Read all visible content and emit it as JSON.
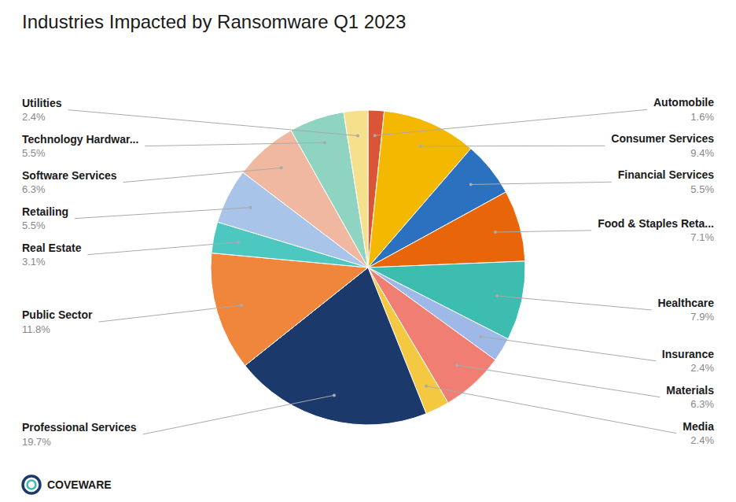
{
  "chart_data": {
    "type": "pie",
    "title": "Industries Impacted by Ransomware Q1 2023",
    "categories": [
      "Automobile",
      "Consumer Services",
      "Financial Services",
      "Food & Staples Reta...",
      "Healthcare",
      "Insurance",
      "Materials",
      "Media",
      "Professional Services",
      "Public Sector",
      "Real Estate",
      "Retailing",
      "Software Services",
      "Technology Hardwar...",
      "Utilities"
    ],
    "values": [
      1.6,
      9.4,
      5.5,
      7.1,
      7.9,
      2.4,
      6.3,
      2.4,
      19.7,
      11.8,
      3.1,
      5.5,
      6.3,
      5.5,
      2.4
    ],
    "value_labels": [
      "1.6%",
      "9.4%",
      "5.5%",
      "7.1%",
      "7.9%",
      "2.4%",
      "6.3%",
      "2.4%",
      "19.7%",
      "11.8%",
      "3.1%",
      "5.5%",
      "6.3%",
      "5.5%",
      "2.4%"
    ],
    "colors": [
      "#d95535",
      "#f5b800",
      "#2c70c0",
      "#e8650a",
      "#3dbcb0",
      "#9eb8e8",
      "#f07e72",
      "#f5c842",
      "#1b3a6b",
      "#f0853c",
      "#4dc8c0",
      "#a8c4e8",
      "#f0b8a0",
      "#8fd4c0",
      "#f5e08c"
    ],
    "data_labels": true,
    "annotations": [
      "COVEWARE"
    ]
  }
}
